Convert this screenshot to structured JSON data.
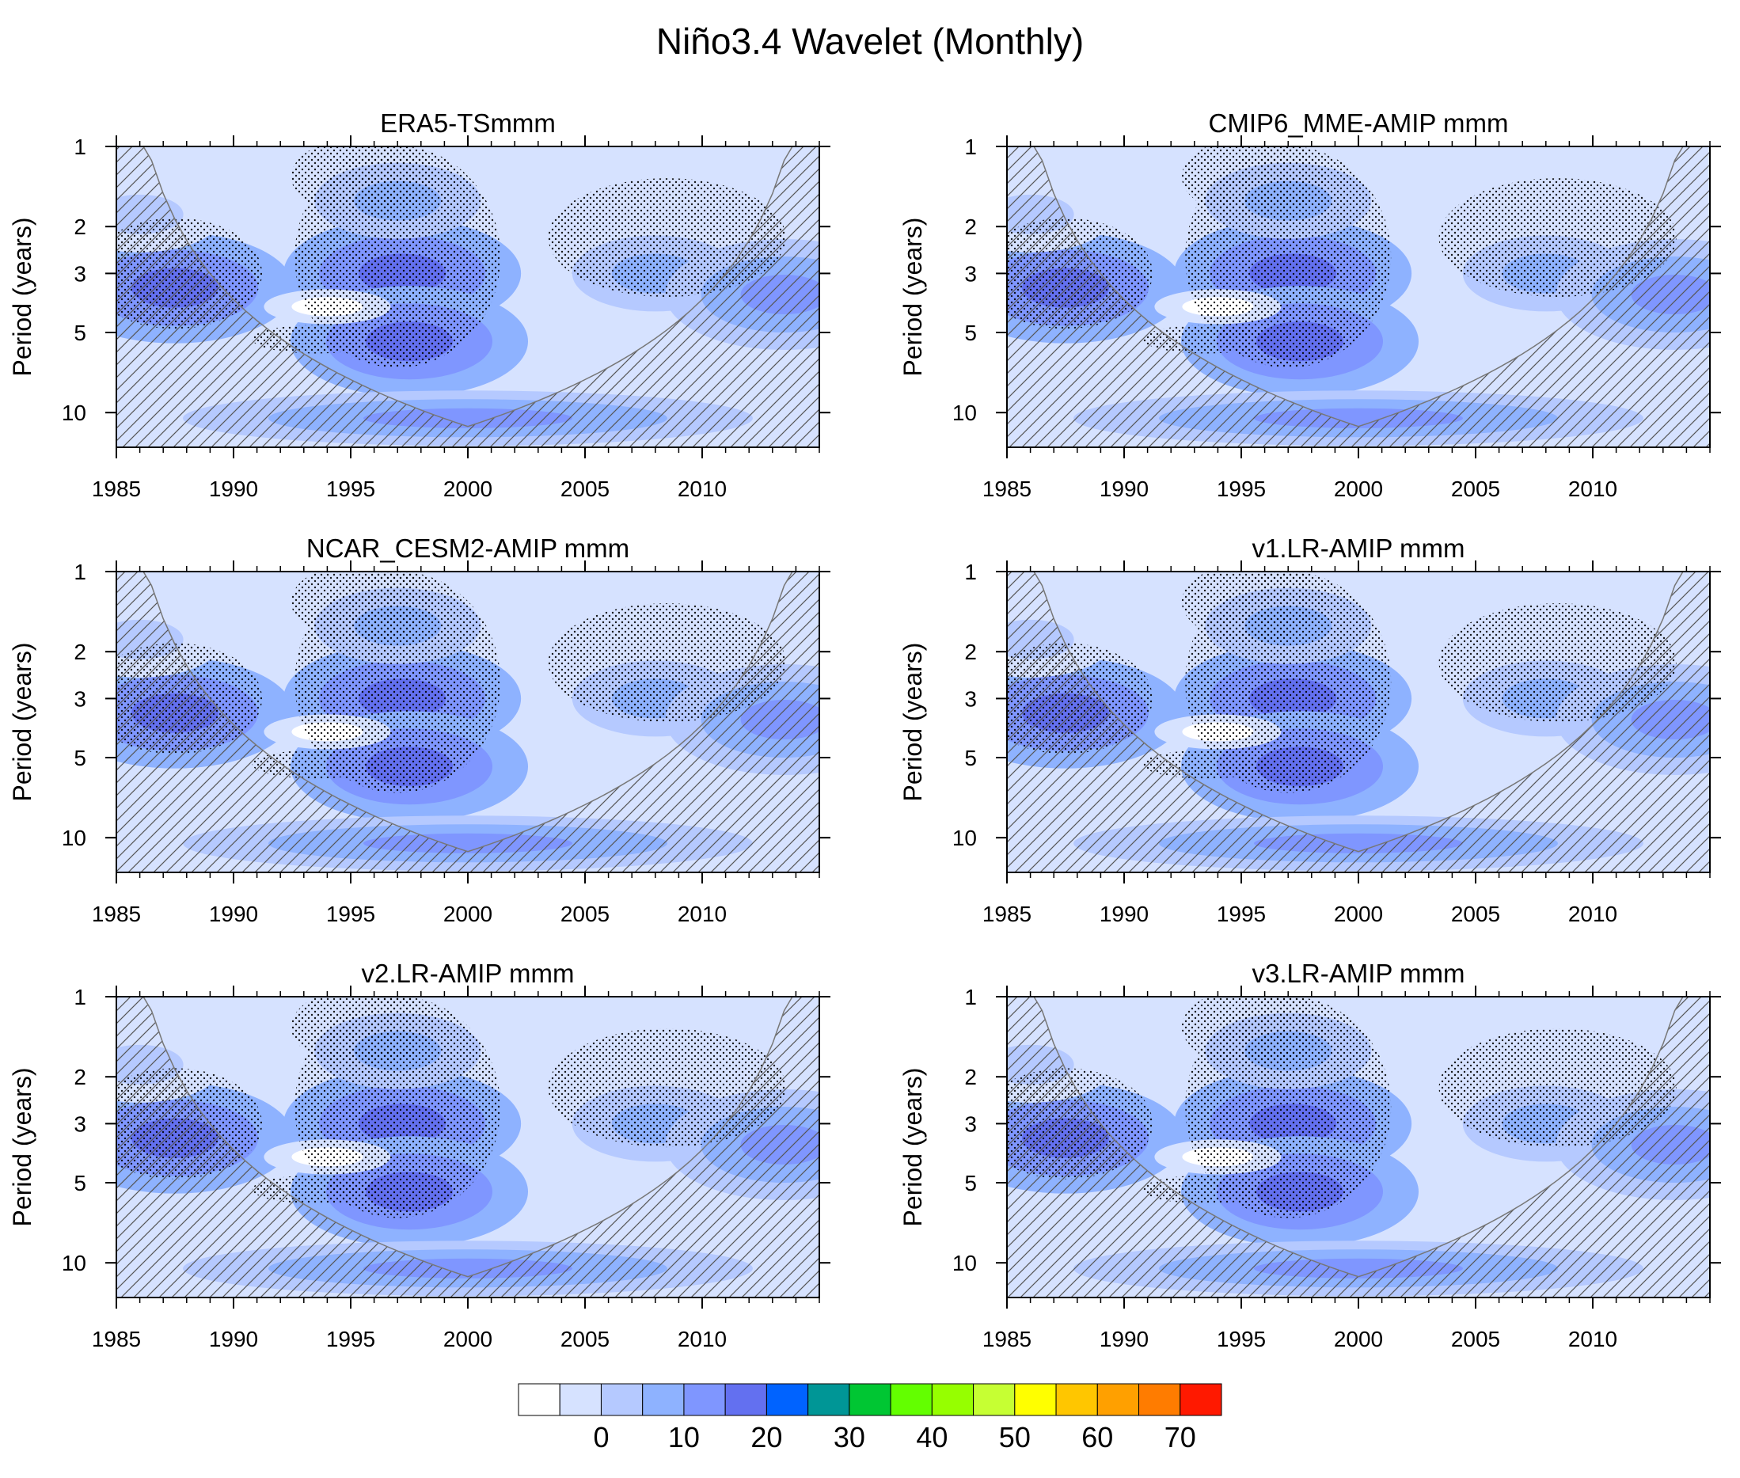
{
  "chart_data": {
    "title": "Niño3.4 Wavelet (Monthly)",
    "type": "heatmap",
    "x_ticks": [
      1985,
      1990,
      1995,
      2000,
      2005,
      2010
    ],
    "xlim": [
      1985,
      2015
    ],
    "y_ticks": [
      1,
      2,
      3,
      5,
      10
    ],
    "ylim": [
      1,
      13.5
    ],
    "ylabel": "Period (years)",
    "y_scale": "log",
    "y_direction": "increasing-downward",
    "colorbar": {
      "ticks": [
        0,
        10,
        20,
        30,
        40,
        50,
        60,
        70
      ],
      "levels": [
        -5,
        0,
        5,
        10,
        15,
        20,
        25,
        30,
        35,
        40,
        45,
        50,
        55,
        60,
        65,
        70,
        75
      ],
      "colors": [
        "#ffffff",
        "#d6e2ff",
        "#b5c9ff",
        "#8eb2ff",
        "#7f96ff",
        "#6370f0",
        "#0063ff",
        "#009696",
        "#00c633",
        "#63ff00",
        "#96ff00",
        "#c6ff33",
        "#ffff00",
        "#ffc600",
        "#ffa000",
        "#ff7c00",
        "#ff1900"
      ]
    },
    "panels": [
      {
        "title": "ERA5-TSmmm",
        "features": [
          {
            "x": 1987.5,
            "p": 3.4,
            "v": 23
          },
          {
            "x": 1997.2,
            "p": 3.0,
            "v": 24
          },
          {
            "x": 1997.5,
            "p": 5.4,
            "v": 22
          },
          {
            "x": 1994,
            "p": 4.0,
            "v": 1
          },
          {
            "x": 1997,
            "p": 1.6,
            "v": 12
          },
          {
            "x": 2008,
            "p": 3.0,
            "v": 13
          },
          {
            "x": 2013.5,
            "p": 3.6,
            "v": 17
          },
          {
            "x": 2000,
            "p": 10.5,
            "v": 16
          },
          {
            "x": 1986,
            "p": 1.8,
            "v": 8
          }
        ]
      },
      {
        "title": "CMIP6_MME-AMIP  mmm",
        "features": [
          {
            "x": 1987.5,
            "p": 3.4,
            "v": 21
          },
          {
            "x": 1997.2,
            "p": 3.0,
            "v": 20
          },
          {
            "x": 1997.5,
            "p": 5.4,
            "v": 21
          },
          {
            "x": 1994,
            "p": 4.0,
            "v": 1
          },
          {
            "x": 1997,
            "p": 1.6,
            "v": 12
          },
          {
            "x": 2008,
            "p": 3.0,
            "v": 14
          },
          {
            "x": 2013.5,
            "p": 3.6,
            "v": 16
          },
          {
            "x": 2000,
            "p": 10.5,
            "v": 15
          },
          {
            "x": 1986,
            "p": 1.8,
            "v": 8
          }
        ]
      },
      {
        "title": "NCAR_CESM2-AMIP  mmm",
        "features": [
          {
            "x": 1987.5,
            "p": 3.4,
            "v": 22
          },
          {
            "x": 1997.2,
            "p": 3.0,
            "v": 23
          },
          {
            "x": 1997.5,
            "p": 5.4,
            "v": 22
          },
          {
            "x": 1994,
            "p": 4.0,
            "v": 1
          },
          {
            "x": 1997,
            "p": 1.6,
            "v": 12
          },
          {
            "x": 2008,
            "p": 3.0,
            "v": 14
          },
          {
            "x": 2013.5,
            "p": 3.6,
            "v": 17
          },
          {
            "x": 2000,
            "p": 10.5,
            "v": 16
          },
          {
            "x": 1986,
            "p": 1.8,
            "v": 8
          }
        ]
      },
      {
        "title": "v1.LR-AMIP  mmm",
        "features": [
          {
            "x": 1987.5,
            "p": 3.4,
            "v": 22
          },
          {
            "x": 1997.2,
            "p": 3.0,
            "v": 22
          },
          {
            "x": 1997.5,
            "p": 5.4,
            "v": 22
          },
          {
            "x": 1994,
            "p": 4.0,
            "v": 1
          },
          {
            "x": 1997,
            "p": 1.6,
            "v": 12
          },
          {
            "x": 2008,
            "p": 3.0,
            "v": 14
          },
          {
            "x": 2013.5,
            "p": 3.6,
            "v": 17
          },
          {
            "x": 2000,
            "p": 10.5,
            "v": 15
          },
          {
            "x": 1986,
            "p": 1.8,
            "v": 8
          }
        ]
      },
      {
        "title": "v2.LR-AMIP  mmm",
        "features": [
          {
            "x": 1987.5,
            "p": 3.4,
            "v": 23
          },
          {
            "x": 1997.2,
            "p": 3.0,
            "v": 22
          },
          {
            "x": 1997.5,
            "p": 5.4,
            "v": 22
          },
          {
            "x": 1994,
            "p": 4.0,
            "v": 1
          },
          {
            "x": 1997,
            "p": 1.6,
            "v": 12
          },
          {
            "x": 2008,
            "p": 3.0,
            "v": 13
          },
          {
            "x": 2013.5,
            "p": 3.6,
            "v": 17
          },
          {
            "x": 2000,
            "p": 10.5,
            "v": 16
          },
          {
            "x": 1986,
            "p": 1.8,
            "v": 8
          }
        ]
      },
      {
        "title": "v3.LR-AMIP  mmm",
        "features": [
          {
            "x": 1987.5,
            "p": 3.4,
            "v": 21
          },
          {
            "x": 1997.2,
            "p": 3.0,
            "v": 22
          },
          {
            "x": 1997.5,
            "p": 5.4,
            "v": 21
          },
          {
            "x": 1994,
            "p": 4.0,
            "v": 1
          },
          {
            "x": 1997,
            "p": 1.6,
            "v": 12
          },
          {
            "x": 2008,
            "p": 3.0,
            "v": 14
          },
          {
            "x": 2013.5,
            "p": 3.6,
            "v": 16
          },
          {
            "x": 2000,
            "p": 10.5,
            "v": 15
          },
          {
            "x": 1986,
            "p": 1.8,
            "v": 8
          }
        ]
      }
    ]
  }
}
